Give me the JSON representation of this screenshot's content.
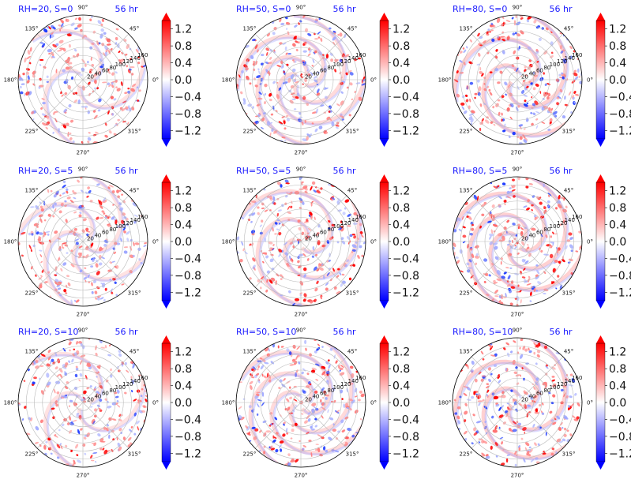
{
  "colors": {
    "negative": "#0000ff",
    "positive": "#ff0000",
    "neutral": "#ffffff",
    "title": "#1a1aff",
    "grid": "#bbbbbb"
  },
  "chart_data": {
    "type": "polar-heatmap",
    "grid": true,
    "colormap": "bwr",
    "angle_ticks": [
      "0°",
      "45°",
      "90°",
      "135°",
      "180°",
      "225°",
      "270°",
      "315°"
    ],
    "radial_ticks": [
      "20",
      "40",
      "60",
      "80",
      "100",
      "120",
      "140",
      "160"
    ],
    "colorbar": {
      "ticks": [
        "1.2",
        "0.8",
        "0.4",
        "0.0",
        "−0.4",
        "−0.8",
        "−1.2"
      ],
      "tick_values": [
        1.2,
        0.8,
        0.4,
        0.0,
        -0.4,
        -0.8,
        -1.2
      ],
      "range": [
        -1.4,
        1.4
      ],
      "extend": "both"
    },
    "panels": [
      {
        "title": "RH=20, S=0",
        "time": "56 hr",
        "rh": 20,
        "shear": 0
      },
      {
        "title": "RH=50, S=0",
        "time": "56 hr",
        "rh": 50,
        "shear": 0
      },
      {
        "title": "RH=80, S=0",
        "time": "56 hr",
        "rh": 80,
        "shear": 0
      },
      {
        "title": "RH=20, S=5",
        "time": "56 hr",
        "rh": 20,
        "shear": 5
      },
      {
        "title": "RH=50, S=5",
        "time": "56 hr",
        "rh": 50,
        "shear": 5
      },
      {
        "title": "RH=80, S=5",
        "time": "56 hr",
        "rh": 80,
        "shear": 5
      },
      {
        "title": "RH=20, S=10",
        "time": "56 hr",
        "rh": 20,
        "shear": 10
      },
      {
        "title": "RH=50, S=10",
        "time": "56 hr",
        "rh": 50,
        "shear": 10
      },
      {
        "title": "RH=80, S=10",
        "time": "56 hr",
        "rh": 80,
        "shear": 10
      }
    ]
  }
}
